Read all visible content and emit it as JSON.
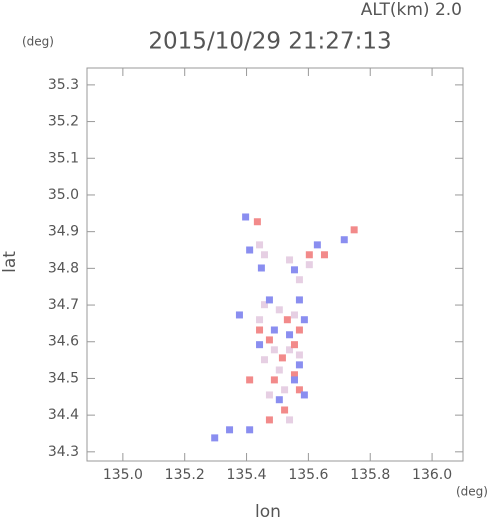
{
  "chart_data": {
    "type": "scatter",
    "title": "2015/10/29 21:27:13",
    "annotation": "ALT(km)  2.0",
    "y_unit": "(deg)",
    "x_unit": "(deg)",
    "x_label": "lon",
    "y_label": "lat",
    "xlim": [
      134.884,
      136.1
    ],
    "ylim": [
      34.275,
      35.346
    ],
    "xticks": [
      {
        "value": 135,
        "label": "135.0"
      },
      135.2,
      135.4,
      135.6,
      135.8,
      {
        "value": 136,
        "label": "136.0"
      }
    ],
    "yticks": [
      34.3,
      34.4,
      34.5,
      34.6,
      34.7,
      34.8,
      34.9,
      {
        "value": 35,
        "label": "35.0"
      },
      35.1,
      35.2,
      35.3
    ],
    "series": [
      {
        "color": "#e6cfe3",
        "x": [
          135.458,
          135.506,
          135.555,
          135.442,
          135.49,
          135.539,
          135.458,
          135.506,
          135.571,
          135.523,
          135.474,
          135.539,
          135.442,
          135.571,
          135.603,
          135.539,
          135.458
        ],
        "y": [
          34.701,
          34.687,
          34.673,
          34.66,
          34.578,
          34.578,
          34.551,
          34.523,
          34.564,
          34.469,
          34.455,
          34.387,
          34.864,
          34.769,
          34.81,
          34.823,
          34.837
        ]
      },
      {
        "color": "#f28a8a",
        "x": [
          135.435,
          135.532,
          135.571,
          135.474,
          135.442,
          135.555,
          135.49,
          135.571,
          135.523,
          135.474,
          135.603,
          135.652,
          135.748,
          135.555,
          135.41,
          135.516
        ],
        "y": [
          34.927,
          34.66,
          34.632,
          34.605,
          34.632,
          34.51,
          34.496,
          34.469,
          34.414,
          34.387,
          34.837,
          34.837,
          34.905,
          34.592,
          34.496,
          34.556
        ]
      },
      {
        "color": "#8a8ef0",
        "x": [
          135.397,
          135.41,
          135.448,
          135.555,
          135.629,
          135.716,
          135.571,
          135.377,
          135.442,
          135.49,
          135.539,
          135.587,
          135.555,
          135.587,
          135.506,
          135.345,
          135.41,
          135.297,
          135.571,
          135.474
        ],
        "y": [
          34.94,
          34.85,
          34.801,
          34.796,
          34.864,
          34.878,
          34.714,
          34.673,
          34.592,
          34.632,
          34.619,
          34.66,
          34.496,
          34.455,
          34.442,
          34.36,
          34.36,
          34.338,
          34.537,
          34.714
        ]
      }
    ]
  }
}
